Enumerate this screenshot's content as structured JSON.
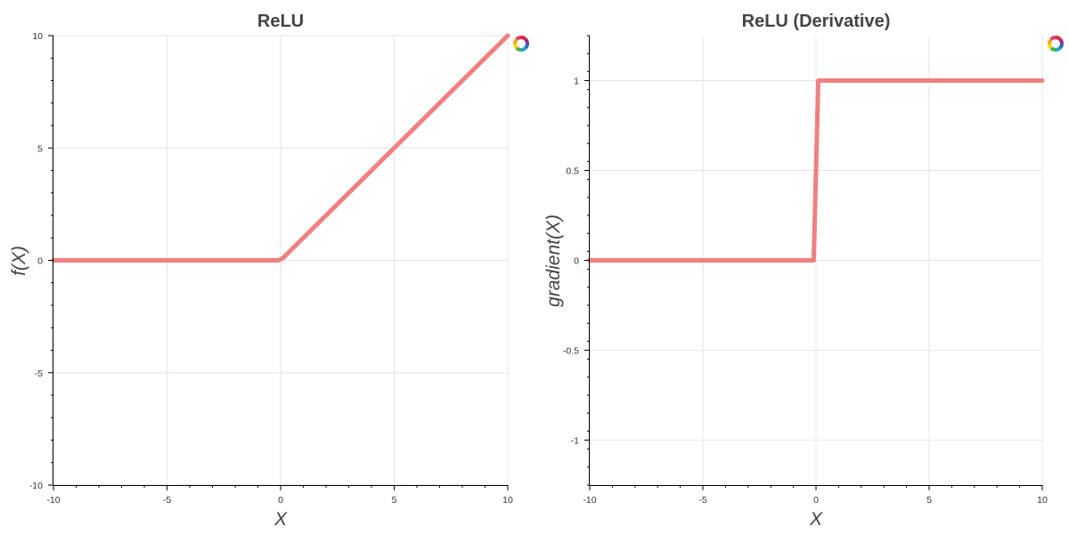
{
  "chart_data": [
    {
      "type": "line",
      "title": "ReLU",
      "xlabel": "X",
      "ylabel": "f(X)",
      "xlim": [
        -10,
        10
      ],
      "ylim": [
        -10,
        10
      ],
      "xticks": [
        -10,
        -5,
        0,
        5,
        10
      ],
      "xtick_labels": [
        "-10",
        "-5",
        "0",
        "5",
        "10"
      ],
      "yticks": [
        -10,
        -5,
        0,
        5,
        10
      ],
      "ytick_labels": [
        "-10",
        "-5",
        "0",
        "5",
        "10"
      ],
      "grid": true,
      "series": [
        {
          "color": "#f08080",
          "x": [
            -10,
            -0.1,
            0.1,
            10
          ],
          "y": [
            0,
            0,
            0.1,
            10
          ]
        }
      ]
    },
    {
      "type": "line",
      "title": "ReLU (Derivative)",
      "xlabel": "X",
      "ylabel": "gradient(X)",
      "xlim": [
        -10,
        10
      ],
      "ylim": [
        -1.25,
        1.25
      ],
      "xticks": [
        -10,
        -5,
        0,
        5,
        10
      ],
      "xtick_labels": [
        "-10",
        "-5",
        "0",
        "5",
        "10"
      ],
      "yticks": [
        -1,
        -0.5,
        0,
        0.5,
        1
      ],
      "ytick_labels": [
        "-1",
        "-0.5",
        "0",
        "0.5",
        "1"
      ],
      "grid": true,
      "series": [
        {
          "color": "#f08080",
          "x": [
            -10,
            -0.1,
            0.1,
            10
          ],
          "y": [
            0,
            0,
            1,
            1
          ]
        }
      ]
    }
  ]
}
